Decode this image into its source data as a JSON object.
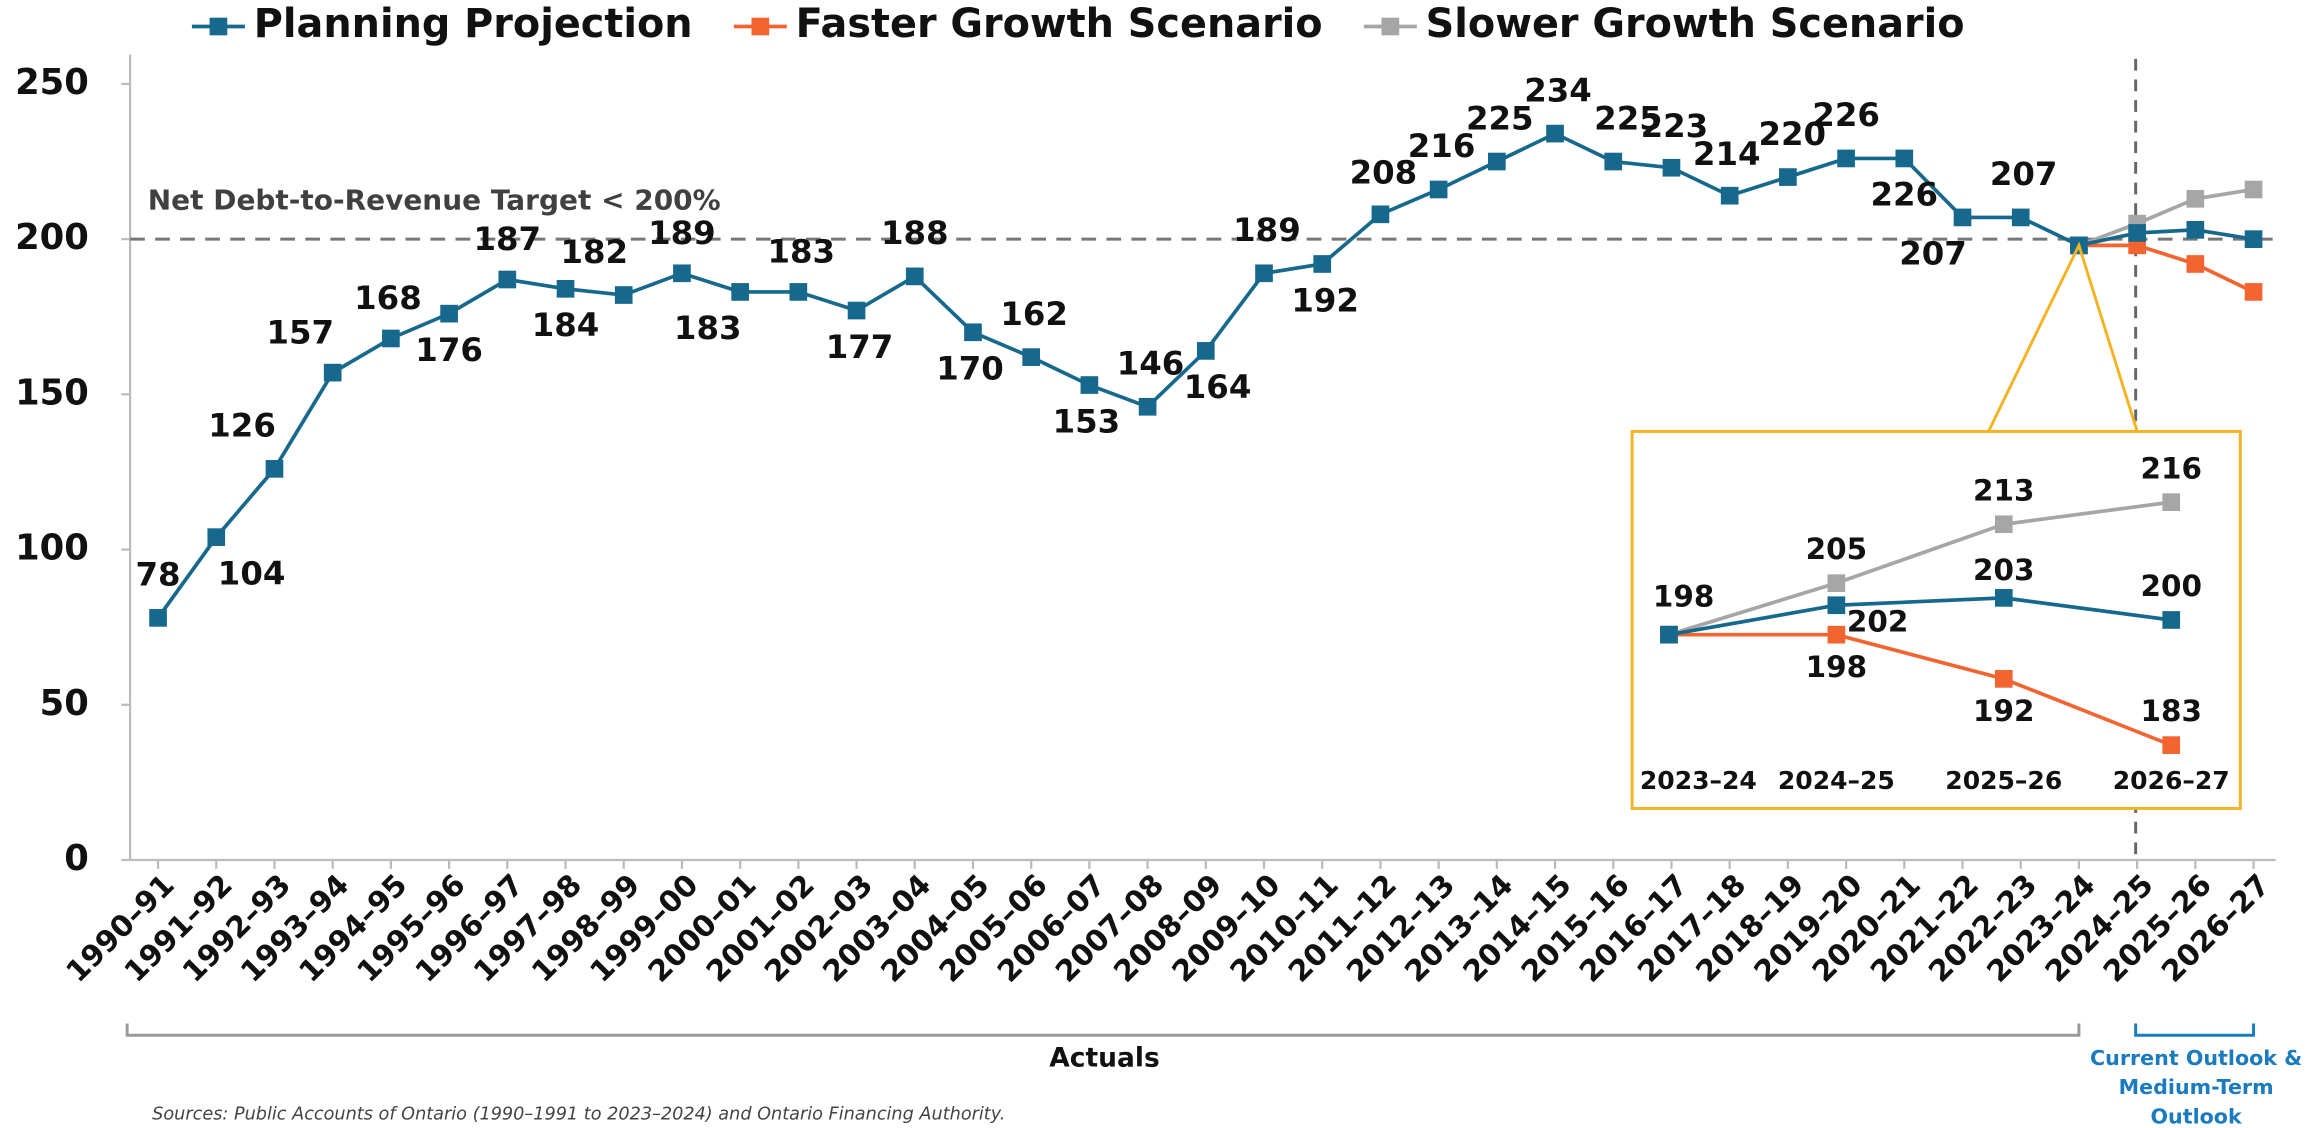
{
  "chart_data": [
    {
      "type": "line",
      "categories": [
        "1990–91",
        "1991–92",
        "1992–93",
        "1993–94",
        "1994–95",
        "1995–96",
        "1996–97",
        "1997–98",
        "1998–99",
        "1999–00",
        "2000–01",
        "2001–02",
        "2002–03",
        "2003–04",
        "2004–05",
        "2005–06",
        "2006–07",
        "2007–08",
        "2008–09",
        "2009–10",
        "2010–11",
        "2011–12",
        "2012–13",
        "2013–14",
        "2014–15",
        "2015–16",
        "2016–17",
        "2017–18",
        "2018–19",
        "2019–20",
        "2020–21",
        "2021–22",
        "2022–23",
        "2023–24",
        "2024–25",
        "2025–26",
        "2026–27"
      ],
      "series": [
        {
          "name": "Planning Projection",
          "color": "#16698c",
          "values": [
            78,
            104,
            126,
            157,
            168,
            176,
            187,
            184,
            182,
            189,
            183,
            183,
            177,
            188,
            170,
            162,
            153,
            146,
            164,
            189,
            192,
            208,
            216,
            225,
            234,
            225,
            223,
            214,
            220,
            226,
            226,
            207,
            207,
            198,
            202,
            203,
            200
          ]
        },
        {
          "name": "Faster Growth Scenario",
          "color": "#f26531",
          "values": [
            null,
            null,
            null,
            null,
            null,
            null,
            null,
            null,
            null,
            null,
            null,
            null,
            null,
            null,
            null,
            null,
            null,
            null,
            null,
            null,
            null,
            null,
            null,
            null,
            null,
            null,
            null,
            null,
            null,
            null,
            null,
            null,
            null,
            198,
            198,
            192,
            183
          ]
        },
        {
          "name": "Slower Growth Scenario",
          "color": "#a6a6a6",
          "values": [
            null,
            null,
            null,
            null,
            null,
            null,
            null,
            null,
            null,
            null,
            null,
            null,
            null,
            null,
            null,
            null,
            null,
            null,
            null,
            null,
            null,
            null,
            null,
            null,
            null,
            null,
            null,
            null,
            null,
            null,
            null,
            null,
            null,
            198,
            205,
            213,
            216
          ]
        }
      ],
      "ylim": [
        0,
        250
      ],
      "yticks": [
        0,
        50,
        100,
        150,
        200,
        250
      ],
      "reference_line": 200,
      "reference_label": "Net Debt-to-Revenue Target < 200%",
      "period_labels": {
        "actuals": "Actuals",
        "outlook": [
          "Current Outlook &",
          "Medium-Term",
          "Outlook"
        ]
      },
      "source": "Sources: Public Accounts of Ontario (1990–1991 to 2023–2024) and Ontario Financing Authority."
    },
    {
      "type": "line",
      "categories": [
        "2023–24",
        "2024–25",
        "2025–26",
        "2026–27"
      ],
      "series": [
        {
          "name": "Planning Projection",
          "color": "#16698c",
          "values": [
            198,
            202,
            203,
            200
          ]
        },
        {
          "name": "Faster Growth Scenario",
          "color": "#f26531",
          "values": [
            198,
            198,
            192,
            183
          ]
        },
        {
          "name": "Slower Growth Scenario",
          "color": "#a6a6a6",
          "values": [
            198,
            205,
            213,
            216
          ]
        }
      ],
      "frame_color": "#f5b324"
    }
  ]
}
